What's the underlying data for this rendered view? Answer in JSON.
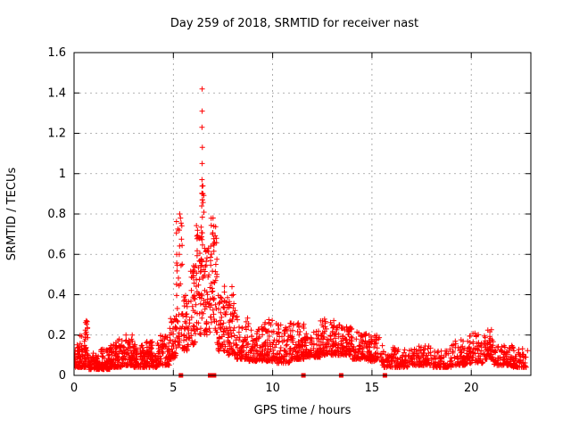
{
  "chart_data": {
    "type": "scatter",
    "title": "Day 259 of 2018, SRMTID for receiver nast",
    "xlabel": "GPS time / hours",
    "ylabel": "SRMTID / TECUs",
    "xlim": [
      0,
      23
    ],
    "ylim": [
      0,
      1.6
    ],
    "xticks": [
      0,
      5,
      10,
      15,
      20
    ],
    "xtick_labels": [
      "0",
      "5",
      "10",
      "15",
      "20"
    ],
    "yticks": [
      0,
      0.2,
      0.4,
      0.6,
      0.8,
      1,
      1.2,
      1.4,
      1.6
    ],
    "ytick_labels": [
      "0",
      "0.2",
      "0.4",
      "0.6",
      "0.8",
      "1",
      "1.2",
      "1.4",
      "1.6"
    ],
    "grid": true,
    "legend": "none",
    "marker": "plus",
    "point_color": "#ff0000",
    "grid_color": "#9a9a9a",
    "border_color": "#000000",
    "bands_key": "x0,x1,ymin,ymax,count,skew",
    "bands": [
      [
        0.0,
        0.3,
        0.04,
        0.16,
        45,
        2
      ],
      [
        0.3,
        0.6,
        0.04,
        0.2,
        45,
        2
      ],
      [
        0.55,
        0.7,
        0.08,
        0.28,
        25,
        1.3
      ],
      [
        0.7,
        1.2,
        0.03,
        0.12,
        70,
        2
      ],
      [
        1.2,
        1.8,
        0.03,
        0.13,
        80,
        2
      ],
      [
        1.8,
        2.4,
        0.04,
        0.18,
        85,
        2
      ],
      [
        2.4,
        3.0,
        0.05,
        0.2,
        85,
        2
      ],
      [
        3.0,
        3.6,
        0.04,
        0.16,
        80,
        2
      ],
      [
        3.6,
        4.2,
        0.04,
        0.17,
        80,
        2
      ],
      [
        4.2,
        4.8,
        0.05,
        0.2,
        80,
        2
      ],
      [
        4.8,
        5.15,
        0.08,
        0.3,
        50,
        1.8
      ],
      [
        5.15,
        5.45,
        0.15,
        0.8,
        40,
        1.6
      ],
      [
        5.45,
        5.8,
        0.12,
        0.45,
        45,
        1.8
      ],
      [
        5.8,
        6.15,
        0.15,
        0.55,
        45,
        1.6
      ],
      [
        6.15,
        6.4,
        0.2,
        0.75,
        40,
        1.4
      ],
      [
        6.4,
        6.55,
        0.25,
        0.95,
        30,
        1.2
      ],
      [
        6.55,
        6.9,
        0.2,
        0.65,
        45,
        1.6
      ],
      [
        6.9,
        7.2,
        0.2,
        0.78,
        40,
        1.4
      ],
      [
        7.2,
        7.6,
        0.12,
        0.45,
        50,
        1.8
      ],
      [
        7.6,
        8.2,
        0.1,
        0.4,
        70,
        1.8
      ],
      [
        8.2,
        8.8,
        0.08,
        0.3,
        70,
        2
      ],
      [
        8.8,
        9.5,
        0.07,
        0.24,
        75,
        2
      ],
      [
        9.5,
        10.2,
        0.07,
        0.28,
        75,
        2
      ],
      [
        10.2,
        10.9,
        0.06,
        0.26,
        75,
        2
      ],
      [
        10.9,
        11.6,
        0.08,
        0.26,
        85,
        2
      ],
      [
        11.6,
        12.4,
        0.09,
        0.22,
        85,
        2
      ],
      [
        12.4,
        13.2,
        0.1,
        0.28,
        95,
        1.8
      ],
      [
        13.2,
        14.0,
        0.1,
        0.26,
        95,
        1.8
      ],
      [
        14.0,
        14.8,
        0.08,
        0.22,
        85,
        2
      ],
      [
        14.8,
        15.5,
        0.07,
        0.2,
        70,
        2
      ],
      [
        15.5,
        16.1,
        0.04,
        0.15,
        45,
        2
      ],
      [
        16.1,
        17.0,
        0.04,
        0.14,
        80,
        2
      ],
      [
        17.0,
        18.0,
        0.05,
        0.15,
        85,
        2
      ],
      [
        18.0,
        19.0,
        0.04,
        0.13,
        75,
        2
      ],
      [
        19.0,
        19.8,
        0.05,
        0.18,
        65,
        2
      ],
      [
        19.8,
        20.6,
        0.06,
        0.21,
        70,
        2
      ],
      [
        20.6,
        21.1,
        0.08,
        0.23,
        55,
        1.8
      ],
      [
        21.1,
        22.0,
        0.05,
        0.15,
        80,
        2
      ],
      [
        22.0,
        22.85,
        0.04,
        0.15,
        75,
        2
      ]
    ],
    "peak_points": [
      [
        6.45,
        1.42
      ],
      [
        6.45,
        1.31
      ],
      [
        6.44,
        1.23
      ],
      [
        6.46,
        1.13
      ],
      [
        6.45,
        1.05
      ],
      [
        6.44,
        0.97
      ],
      [
        6.46,
        0.9
      ],
      [
        6.43,
        0.84
      ],
      [
        5.32,
        0.8
      ],
      [
        5.36,
        0.78
      ],
      [
        5.3,
        0.72
      ],
      [
        7.0,
        0.78
      ],
      [
        7.04,
        0.74
      ],
      [
        6.97,
        0.7
      ],
      [
        7.08,
        0.66
      ],
      [
        7.95,
        0.44
      ],
      [
        8.02,
        0.4
      ]
    ],
    "baseline_markers": [
      5.38,
      6.85,
      7.05,
      11.55,
      13.45,
      15.65
    ]
  }
}
